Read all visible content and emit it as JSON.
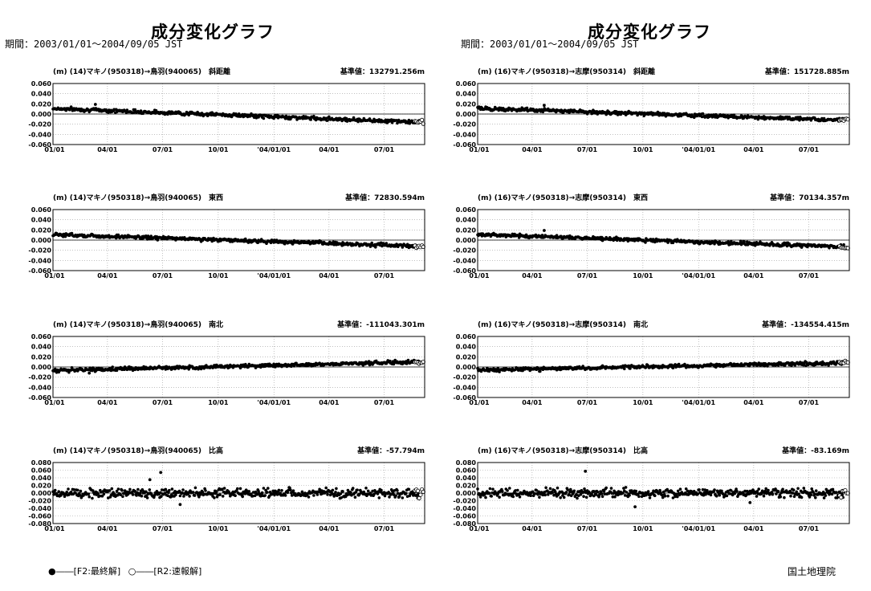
{
  "columns": [
    {
      "title": "成分変化グラフ",
      "period": "期間：2003/01/01～2004/09/05 JST"
    },
    {
      "title": "成分変化グラフ",
      "period": "期間：2003/01/01～2004/09/05 JST"
    }
  ],
  "legend": {
    "final": "●――[F2:最終解]",
    "rapid": "○――[R2:速報解]"
  },
  "organization": "国土地理院",
  "chart_data": [
    {
      "type": "scatter",
      "unit": "(m)",
      "station_pair": "(14)マキノ(950318)→鳥羽(940065)",
      "component": "斜距離",
      "reference": "基準値：132791.256m",
      "x_ticks": [
        "01/01",
        "04/01",
        "07/01",
        "10/01",
        "'04/01/01",
        "04/01",
        "07/01"
      ],
      "y_ticks": [
        "0.060",
        "0.040",
        "0.020",
        "0.000",
        "-0.020",
        "-0.040",
        "-0.060"
      ],
      "ylim": [
        -0.06,
        0.06
      ],
      "trend": {
        "start": 0.011,
        "end": -0.016
      },
      "scatter": 0.003,
      "outliers": [
        {
          "day": 70,
          "value": 0.019
        }
      ]
    },
    {
      "type": "scatter",
      "unit": "(m)",
      "station_pair": "(14)マキノ(950318)→鳥羽(940065)",
      "component": "東西",
      "reference": "基準値：72830.594m",
      "x_ticks": [
        "01/01",
        "04/01",
        "07/01",
        "10/01",
        "'04/01/01",
        "04/01",
        "07/01"
      ],
      "y_ticks": [
        "0.060",
        "0.040",
        "0.020",
        "0.000",
        "-0.020",
        "-0.040",
        "-0.060"
      ],
      "ylim": [
        -0.06,
        0.06
      ],
      "trend": {
        "start": 0.011,
        "end": -0.012
      },
      "scatter": 0.003,
      "outliers": []
    },
    {
      "type": "scatter",
      "unit": "(m)",
      "station_pair": "(14)マキノ(950318)→鳥羽(940065)",
      "component": "南北",
      "reference": "基準値：-111043.301m",
      "x_ticks": [
        "01/01",
        "04/01",
        "07/01",
        "10/01",
        "'04/01/01",
        "04/01",
        "07/01"
      ],
      "y_ticks": [
        "0.060",
        "0.040",
        "0.020",
        "0.000",
        "-0.020",
        "-0.040",
        "-0.060"
      ],
      "ylim": [
        -0.06,
        0.06
      ],
      "trend": {
        "start": -0.007,
        "end": 0.01
      },
      "scatter": 0.003,
      "outliers": [
        {
          "day": 60,
          "value": -0.012
        }
      ]
    },
    {
      "type": "scatter",
      "unit": "(m)",
      "station_pair": "(14)マキノ(950318)→鳥羽(940065)",
      "component": "比高",
      "reference": "基準値：-57.794m",
      "x_ticks": [
        "01/01",
        "04/01",
        "07/01",
        "10/01",
        "'04/01/01",
        "04/01",
        "07/01"
      ],
      "y_ticks": [
        "0.080",
        "0.060",
        "0.040",
        "0.020",
        "0.000",
        "-0.020",
        "-0.040",
        "-0.060",
        "-0.080"
      ],
      "ylim": [
        -0.08,
        0.08
      ],
      "trend": {
        "start": 0.0,
        "end": 0.0
      },
      "scatter": 0.01,
      "outliers": [
        {
          "day": 178,
          "value": 0.054
        },
        {
          "day": 160,
          "value": 0.035
        },
        {
          "day": 210,
          "value": -0.03
        }
      ]
    },
    {
      "type": "scatter",
      "unit": "(m)",
      "station_pair": "(16)マキノ(950318)→志摩(950314)",
      "component": "斜距離",
      "reference": "基準値：151728.885m",
      "x_ticks": [
        "01/01",
        "04/01",
        "07/01",
        "10/01",
        "'04/01/01",
        "04/01",
        "07/01"
      ],
      "y_ticks": [
        "0.060",
        "0.040",
        "0.020",
        "0.000",
        "-0.020",
        "-0.040",
        "-0.060"
      ],
      "ylim": [
        -0.06,
        0.06
      ],
      "trend": {
        "start": 0.011,
        "end": -0.012
      },
      "scatter": 0.003,
      "outliers": [
        {
          "day": 110,
          "value": 0.017
        }
      ]
    },
    {
      "type": "scatter",
      "unit": "(m)",
      "station_pair": "(16)マキノ(950318)→志摩(950314)",
      "component": "東西",
      "reference": "基準値：70134.357m",
      "x_ticks": [
        "01/01",
        "04/01",
        "07/01",
        "10/01",
        "'04/01/01",
        "04/01",
        "07/01"
      ],
      "y_ticks": [
        "0.060",
        "0.040",
        "0.020",
        "0.000",
        "-0.020",
        "-0.040",
        "-0.060"
      ],
      "ylim": [
        -0.06,
        0.06
      ],
      "trend": {
        "start": 0.011,
        "end": -0.013
      },
      "scatter": 0.003,
      "outliers": [
        {
          "day": 110,
          "value": 0.019
        }
      ]
    },
    {
      "type": "scatter",
      "unit": "(m)",
      "station_pair": "(16)マキノ(950318)→志摩(950314)",
      "component": "南北",
      "reference": "基準値：-134554.415m",
      "x_ticks": [
        "01/01",
        "04/01",
        "07/01",
        "10/01",
        "'04/01/01",
        "04/01",
        "07/01"
      ],
      "y_ticks": [
        "0.060",
        "0.040",
        "0.020",
        "0.000",
        "-0.020",
        "-0.040",
        "-0.060"
      ],
      "ylim": [
        -0.06,
        0.06
      ],
      "trend": {
        "start": -0.006,
        "end": 0.008
      },
      "scatter": 0.003,
      "outliers": []
    },
    {
      "type": "scatter",
      "unit": "(m)",
      "station_pair": "(16)マキノ(950318)→志摩(950314)",
      "component": "比高",
      "reference": "基準値：-83.169m",
      "x_ticks": [
        "01/01",
        "04/01",
        "07/01",
        "10/01",
        "'04/01/01",
        "04/01",
        "07/01"
      ],
      "y_ticks": [
        "0.080",
        "0.060",
        "0.040",
        "0.020",
        "0.000",
        "-0.020",
        "-0.040",
        "-0.060",
        "-0.080"
      ],
      "ylim": [
        -0.08,
        0.08
      ],
      "trend": {
        "start": 0.0,
        "end": 0.0
      },
      "scatter": 0.01,
      "outliers": [
        {
          "day": 178,
          "value": 0.057
        },
        {
          "day": 260,
          "value": -0.036
        },
        {
          "day": 450,
          "value": -0.025
        }
      ]
    }
  ]
}
